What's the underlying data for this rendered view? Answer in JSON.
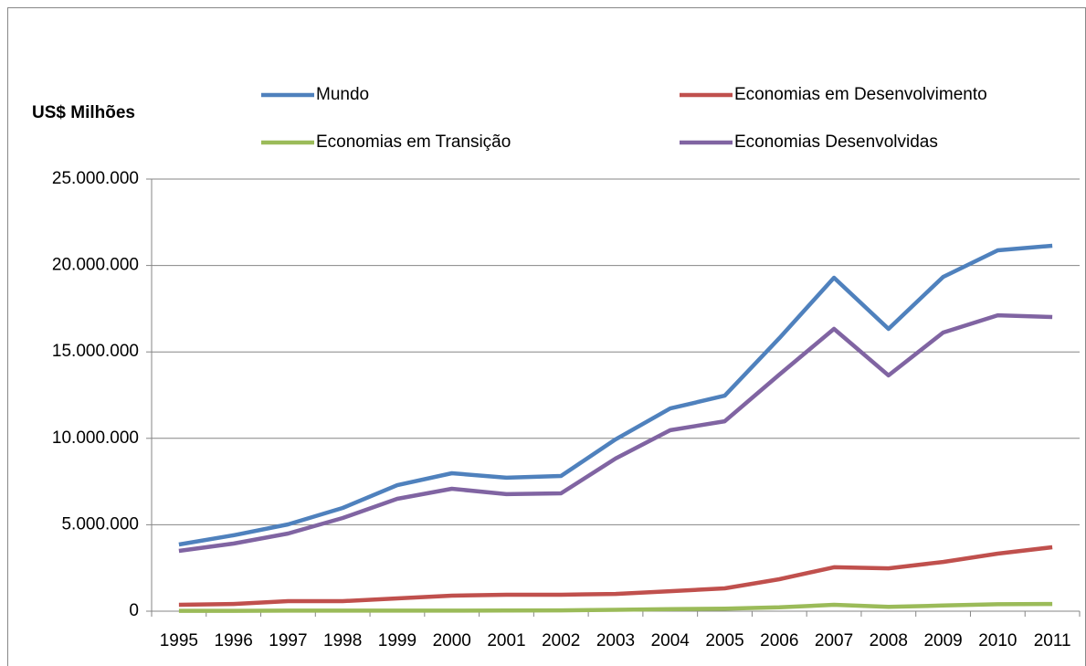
{
  "chart_data": {
    "type": "line",
    "y_label": "US$ Milhões",
    "categories": [
      "1995",
      "1996",
      "1997",
      "1998",
      "1999",
      "2000",
      "2001",
      "2002",
      "2003",
      "2004",
      "2005",
      "2006",
      "2007",
      "2008",
      "2009",
      "2010",
      "2011"
    ],
    "series": [
      {
        "name": "Mundo",
        "color": "#4f81bd",
        "values": [
          3860000,
          4390000,
          5020000,
          5970000,
          7290000,
          7980000,
          7720000,
          7820000,
          9940000,
          11730000,
          12470000,
          15800000,
          19290000,
          16330000,
          19340000,
          20880000,
          21140000
        ]
      },
      {
        "name": "Economias em Desenvolvimento",
        "color": "#c0504d",
        "values": [
          370000,
          420000,
          580000,
          580000,
          740000,
          900000,
          950000,
          950000,
          1000000,
          1160000,
          1320000,
          1850000,
          2540000,
          2480000,
          2850000,
          3330000,
          3700000
        ]
      },
      {
        "name": "Economias em Transição",
        "color": "#9bbb59",
        "values": [
          20000,
          20000,
          30000,
          30000,
          30000,
          30000,
          40000,
          50000,
          80000,
          120000,
          150000,
          220000,
          370000,
          250000,
          330000,
          400000,
          420000
        ]
      },
      {
        "name": "Economias Desenvolvidas",
        "color": "#8064a2",
        "values": [
          3490000,
          3910000,
          4490000,
          5390000,
          6500000,
          7080000,
          6770000,
          6820000,
          8830000,
          10470000,
          10990000,
          13690000,
          16330000,
          13640000,
          16120000,
          17120000,
          17020000
        ]
      }
    ],
    "ylim": [
      0,
      25000000
    ],
    "yticks": [
      0,
      {
        "value": 5000000,
        "label": "5.000.000"
      },
      {
        "value": 10000000,
        "label": "10.000.000"
      },
      {
        "value": 15000000,
        "label": "15.000.000"
      },
      {
        "value": 20000000,
        "label": "20.000.000"
      },
      {
        "value": 25000000,
        "label": "25.000.000"
      }
    ],
    "grid": true
  }
}
